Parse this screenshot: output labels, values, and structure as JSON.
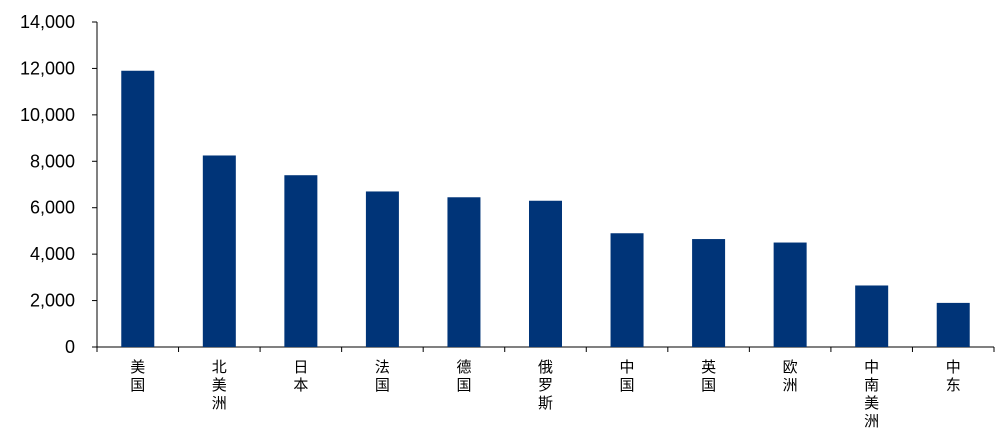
{
  "chart_data": {
    "type": "bar",
    "categories": [
      "美国",
      "北美洲",
      "日本",
      "法国",
      "德国",
      "俄罗斯",
      "中国",
      "英国",
      "欧洲",
      "中南美洲",
      "中东"
    ],
    "values": [
      11900,
      8250,
      7400,
      6700,
      6450,
      6300,
      4900,
      4650,
      4500,
      2650,
      1900
    ],
    "title": "",
    "xlabel": "",
    "ylabel": "",
    "ylim": [
      0,
      14000
    ],
    "yticks": [
      0,
      2000,
      4000,
      6000,
      8000,
      10000,
      12000,
      14000
    ],
    "ytick_labels": [
      "0",
      "2,000",
      "4,000",
      "6,000",
      "8,000",
      "10,000",
      "12,000",
      "14,000"
    ],
    "grid": false,
    "legend": "none",
    "bar_color": "#003478",
    "axis_color": "#000000"
  }
}
